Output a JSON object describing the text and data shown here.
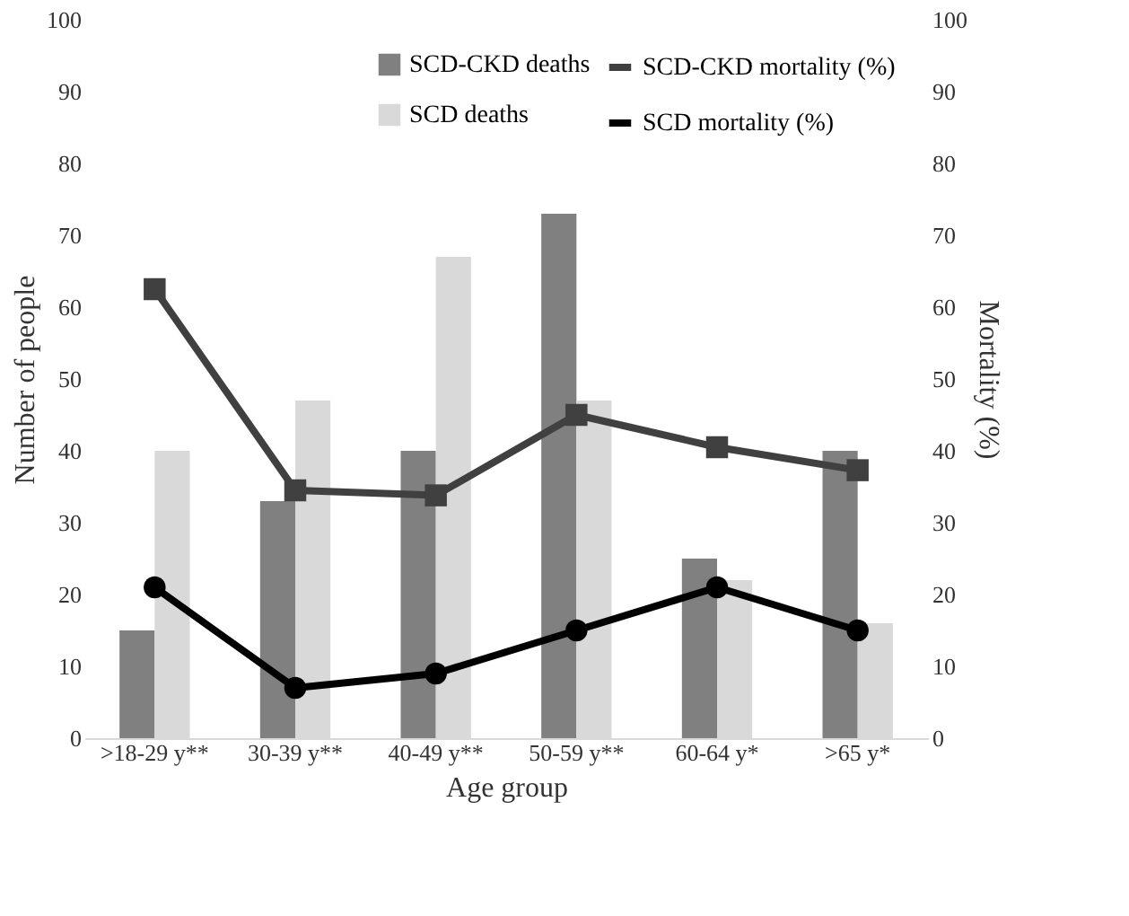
{
  "chart_data": {
    "type": "bar",
    "xlabel": "Age group",
    "ylabel": "Number of people",
    "y2label": "Mortality (%)",
    "categories": [
      ">18-29 y**",
      "30-39 y**",
      "40-49 y**",
      "50-59 y**",
      "60-64 y*",
      ">65 y*"
    ],
    "series": [
      {
        "name": "SCD-CKD deaths",
        "color": "#808080",
        "values": [
          15,
          33,
          40,
          73,
          25,
          40
        ]
      },
      {
        "name": "SCD deaths",
        "color": "#d9d9d9",
        "values": [
          40,
          47,
          67,
          47,
          22,
          16
        ]
      },
      {
        "name": "SCD-CKD mortality (%)",
        "type": "line",
        "axis": "y2",
        "marker": "square",
        "color": "#404040",
        "values": [
          62.5,
          34.5,
          33.8,
          45,
          40.5,
          37.3
        ]
      },
      {
        "name": "SCD mortality (%)",
        "type": "line",
        "axis": "y2",
        "marker": "circle",
        "color": "#000000",
        "values": [
          21,
          7,
          9,
          15,
          21,
          15
        ]
      }
    ],
    "ylim": [
      0,
      100
    ],
    "yticks": [
      0,
      10,
      20,
      30,
      40,
      50,
      60,
      70,
      80,
      90,
      100
    ],
    "y2lim": [
      0,
      100
    ],
    "y2ticks": [
      0,
      10,
      20,
      30,
      40,
      50,
      60,
      70,
      80,
      90,
      100
    ],
    "grid": false,
    "legend": "top right",
    "line_style": "solid"
  }
}
